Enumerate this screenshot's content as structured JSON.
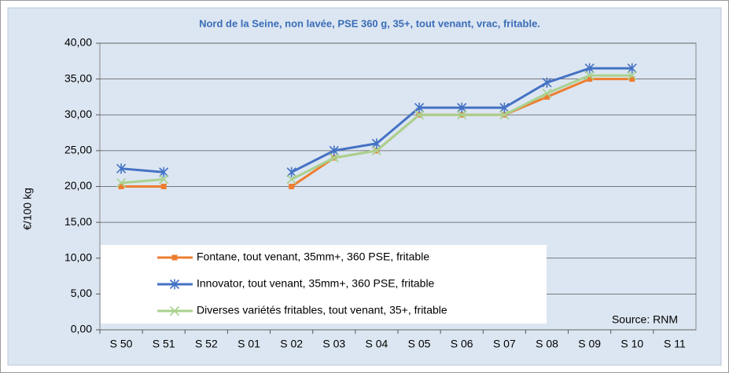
{
  "chart_data": {
    "type": "line",
    "title": "Nord de la Seine, non lavée, PSE 360 g, 35+, tout venant, vrac, fritable.",
    "y_label": "€/100 kg",
    "annotation": "Source: RNM",
    "categories": [
      "S 50",
      "S 51",
      "S 52",
      "S 01",
      "S 02",
      "S 03",
      "S 04",
      "S 05",
      "S 06",
      "S 07",
      "S 08",
      "S 09",
      "S 10",
      "S 11"
    ],
    "series": [
      {
        "name": "Fontane, tout venant, 35mm+, 360 PSE, fritable",
        "color": "#ed7d31",
        "marker": "square",
        "values": [
          20,
          20,
          null,
          null,
          20,
          24,
          25,
          30,
          30,
          30,
          32.5,
          35,
          35,
          null
        ]
      },
      {
        "name": "Innovator, tout venant, 35mm+, 360 PSE,  fritable",
        "color": "#4472c4",
        "marker": "star",
        "values": [
          22.5,
          22,
          null,
          null,
          22,
          25,
          26,
          31,
          31,
          31,
          34.5,
          36.5,
          36.5,
          null
        ]
      },
      {
        "name": "Diverses variétés fritables, tout venant, 35+, fritable",
        "color": "#a9d18e",
        "marker": "x",
        "values": [
          20.5,
          21,
          null,
          null,
          21,
          24,
          25,
          30,
          30,
          30,
          33,
          35.5,
          35.5,
          null
        ]
      }
    ],
    "ylim": [
      0,
      40
    ],
    "yticks": [
      {
        "value": 0,
        "label": "0,00"
      },
      {
        "value": 5,
        "label": "5,00"
      },
      {
        "value": 10,
        "label": "10,00"
      },
      {
        "value": 15,
        "label": "15,00"
      },
      {
        "value": 20,
        "label": "20,00"
      },
      {
        "value": 25,
        "label": "25,00"
      },
      {
        "value": 30,
        "label": "30,00"
      },
      {
        "value": 35,
        "label": "35,00"
      },
      {
        "value": 40,
        "label": "40,00"
      }
    ],
    "grid": true,
    "legend": "bottom-left"
  }
}
